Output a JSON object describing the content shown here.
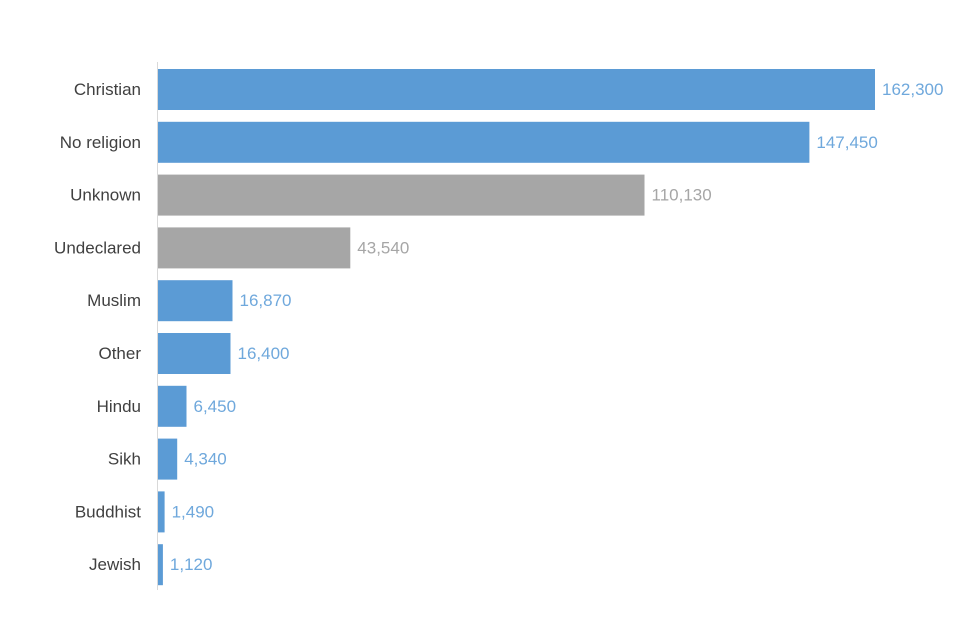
{
  "chart_data": {
    "type": "bar",
    "orientation": "horizontal",
    "title": "",
    "xlabel": "",
    "ylabel": "",
    "grid": false,
    "xlim": [
      0,
      162300
    ],
    "categories": [
      "Christian",
      "No religion",
      "Unknown",
      "Undeclared",
      "Muslim",
      "Other",
      "Hindu",
      "Sikh",
      "Buddhist",
      "Jewish"
    ],
    "values": [
      162300,
      147450,
      110130,
      43540,
      16870,
      16400,
      6450,
      4340,
      1490,
      1120
    ],
    "value_labels": [
      "162,300",
      "147,450",
      "110,130",
      "43,540",
      "16,870",
      "16,400",
      "6,450",
      "4,340",
      "1,490",
      "1,120"
    ],
    "bar_colors": [
      "#5b9bd5",
      "#5b9bd5",
      "#a6a6a6",
      "#a6a6a6",
      "#5b9bd5",
      "#5b9bd5",
      "#5b9bd5",
      "#5b9bd5",
      "#5b9bd5",
      "#5b9bd5"
    ],
    "label_colors": [
      "#6fa8dc",
      "#6fa8dc",
      "#a6a6a6",
      "#a6a6a6",
      "#6fa8dc",
      "#6fa8dc",
      "#6fa8dc",
      "#6fa8dc",
      "#6fa8dc",
      "#6fa8dc"
    ],
    "axis_color": "#d9d9d9",
    "category_label_color": "#404040"
  }
}
